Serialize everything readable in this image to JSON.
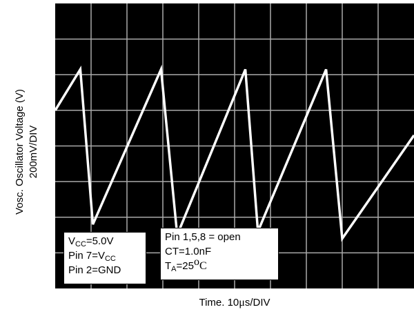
{
  "chart_data": {
    "type": "line",
    "title": "",
    "ylabel_line1": "Vosc. Oscillator Voltage (V)",
    "ylabel_line2": "200mV/DIV",
    "xlabel_pre": "Time. 10",
    "xlabel_mu": "μ",
    "xlabel_post": "s/DIV",
    "grid": true,
    "xlim": [
      0,
      10
    ],
    "ylim": [
      0,
      8
    ],
    "grid_x_divisions": 10,
    "grid_y_divisions": 8,
    "series": [
      {
        "color": "#ffffff",
        "x": [
          0,
          0.7,
          1.05,
          2.95,
          3.4,
          5.3,
          5.65,
          7.55,
          8.0,
          10.0
        ],
        "y": [
          5.0,
          6.15,
          1.8,
          6.15,
          1.5,
          6.15,
          1.6,
          6.15,
          1.4,
          4.3
        ]
      }
    ]
  },
  "annotations": {
    "box1": {
      "line1_a": "V",
      "line1_sub": "CC",
      "line1_b": "=5.0V",
      "line2_a": "Pin 7=V",
      "line2_sub": "CC",
      "line3": "Pin 2=GND"
    },
    "box2": {
      "line1": "Pin 1,5,8 = open",
      "line2": "CT=1.0nF",
      "line3_a": "T",
      "line3_sub": "A",
      "line3_b": "=25",
      "line3_sup": "o",
      "line3_c": "C"
    }
  },
  "colors": {
    "screen": "#000000",
    "grid": "#aaaaaa",
    "trace": "#ffffff"
  }
}
